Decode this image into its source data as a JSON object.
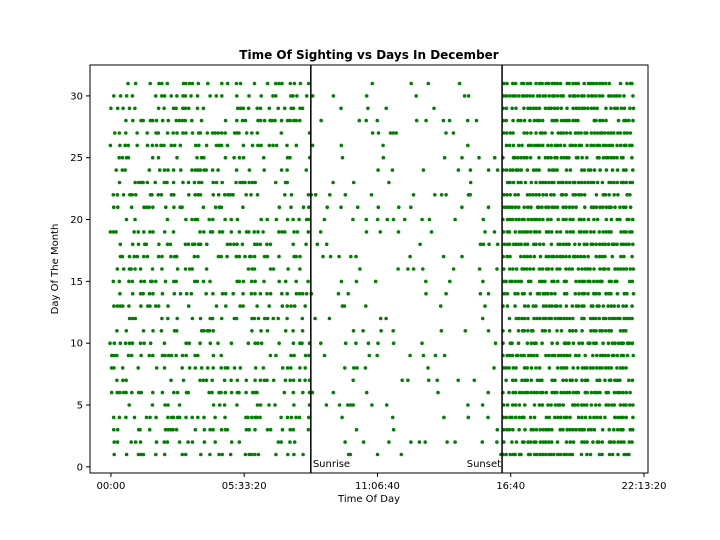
{
  "chart_data": {
    "type": "scatter",
    "title": "Time Of Sighting vs Days In December",
    "xlabel": "Time Of Day",
    "ylabel": "Day Of The Month",
    "xlim_seconds": [
      -3140,
      80600
    ],
    "ylim": [
      -0.5,
      32.5
    ],
    "x_ticks": [
      {
        "seconds": 0,
        "label": "00:00"
      },
      {
        "seconds": 20000,
        "label": "05:33:20"
      },
      {
        "seconds": 40000,
        "label": "11:06:40"
      },
      {
        "seconds": 60000,
        "label": "16:40"
      },
      {
        "seconds": 80000,
        "label": "22:13:20"
      }
    ],
    "y_ticks": [
      0,
      5,
      10,
      15,
      20,
      25,
      30
    ],
    "marker_color": "#008000",
    "reference_lines": [
      {
        "label": "Sunrise",
        "seconds": 30000
      },
      {
        "label": "Sunset",
        "seconds": 58700
      }
    ],
    "density_note": "dense horizontal rows of dots at integer days 1–31, sparse between sunrise and sunset, very dense after sunset",
    "days": [
      1,
      2,
      3,
      4,
      5,
      6,
      7,
      8,
      9,
      10,
      11,
      12,
      13,
      14,
      15,
      16,
      17,
      18,
      19,
      20,
      21,
      22,
      23,
      24,
      25,
      26,
      27,
      28,
      29,
      30,
      31
    ]
  }
}
